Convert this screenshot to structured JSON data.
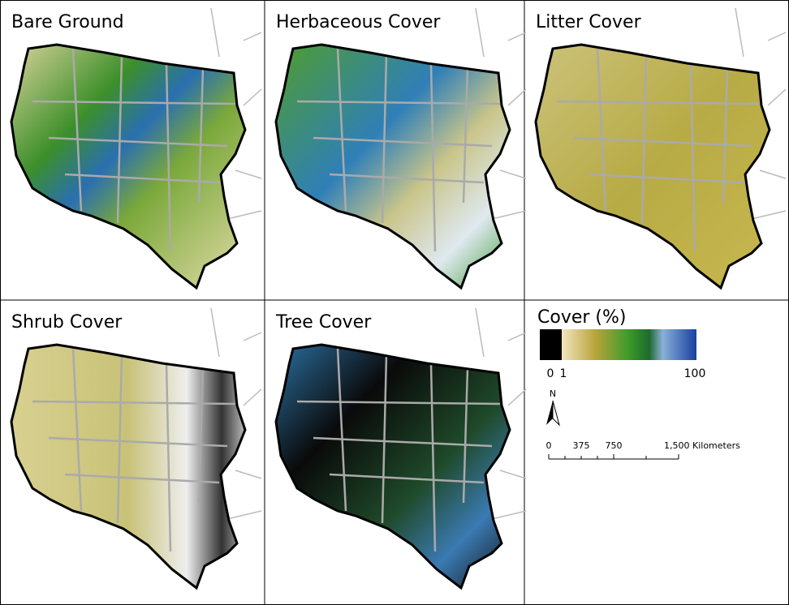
{
  "panels": [
    {
      "title": "Bare Ground"
    },
    {
      "title": "Herbaceous Cover"
    },
    {
      "title": "Litter Cover"
    },
    {
      "title": "Shrub Cover"
    },
    {
      "title": "Tree Cover"
    }
  ],
  "legend": {
    "title": "Cover (%)",
    "labels": [
      "0",
      "1",
      "100"
    ]
  },
  "north_arrow": "N",
  "scale_bar": {
    "labels": [
      "0",
      "375",
      "750",
      "1,500 Kilometers"
    ]
  }
}
